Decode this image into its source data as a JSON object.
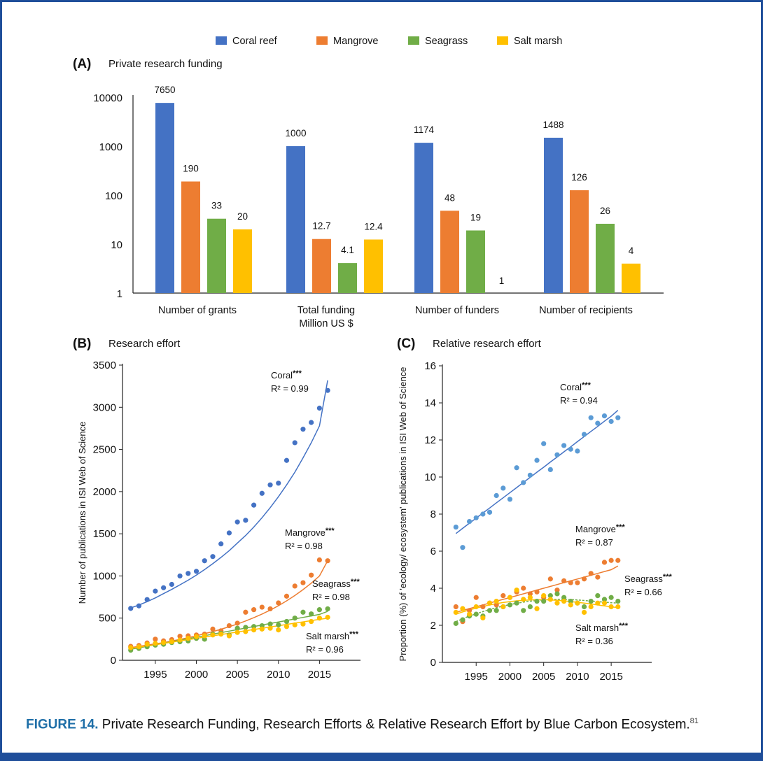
{
  "legend": [
    {
      "name": "Coral reef",
      "color": "#4472c4"
    },
    {
      "name": "Mangrove",
      "color": "#ed7d31"
    },
    {
      "name": "Seagrass",
      "color": "#70ad47"
    },
    {
      "name": "Salt marsh",
      "color": "#ffc000"
    }
  ],
  "caption": {
    "label": "FIGURE 14.",
    "text": "Private Research Funding, Research Efforts & Relative Research Effort by Blue Carbon Ecosystem.",
    "ref": "81"
  },
  "chart_data": [
    {
      "panel": "(A)",
      "title": "Private research funding",
      "type": "bar",
      "yscale": "log",
      "ylim": [
        1,
        10000
      ],
      "yticks": [
        "1",
        "10",
        "100",
        "1000",
        "10000"
      ],
      "categories": [
        "Number of grants",
        "Total funding\nMillion US $",
        "Number of funders",
        "Number of recipients"
      ],
      "series": [
        {
          "name": "Coral reef",
          "color": "#4472c4",
          "values": [
            7650,
            1000,
            1174,
            1488
          ],
          "labels": [
            "7650",
            "1000",
            "1174",
            "1488"
          ]
        },
        {
          "name": "Mangrove",
          "color": "#ed7d31",
          "values": [
            190,
            12.7,
            48,
            126
          ],
          "labels": [
            "190",
            "12.7",
            "48",
            "126"
          ]
        },
        {
          "name": "Seagrass",
          "color": "#70ad47",
          "values": [
            33,
            4.1,
            19,
            26
          ],
          "labels": [
            "33",
            "4.1",
            "19",
            "26"
          ]
        },
        {
          "name": "Salt marsh",
          "color": "#ffc000",
          "values": [
            20,
            12.4,
            1,
            4
          ],
          "labels": [
            "20",
            "12.4",
            "1",
            "4"
          ]
        }
      ]
    },
    {
      "panel": "(B)",
      "title": "Research effort",
      "type": "scatter",
      "ylabel": "Number of publications in ISI Web of Science",
      "xlim": [
        1991,
        2020
      ],
      "ylim": [
        0,
        3500
      ],
      "xticks": [
        "1995",
        "2000",
        "2005",
        "2010",
        "2015"
      ],
      "yticks": [
        "0",
        "500",
        "1000",
        "1500",
        "2000",
        "2500",
        "3000",
        "3500"
      ],
      "x": [
        1992,
        1993,
        1994,
        1995,
        1996,
        1997,
        1998,
        1999,
        2000,
        2001,
        2002,
        2003,
        2004,
        2005,
        2006,
        2007,
        2008,
        2009,
        2010,
        2011,
        2012,
        2013,
        2014,
        2015,
        2016
      ],
      "series": [
        {
          "name": "Coral",
          "color": "#4472c4",
          "point_color": "#4472c4",
          "values": [
            615,
            645,
            720,
            820,
            860,
            900,
            1000,
            1030,
            1055,
            1180,
            1230,
            1380,
            1510,
            1640,
            1660,
            1840,
            1980,
            2080,
            2100,
            2370,
            2580,
            2740,
            2820,
            2990,
            3200
          ],
          "fit": [
            620,
            655,
            695,
            740,
            790,
            840,
            895,
            950,
            1010,
            1075,
            1145,
            1220,
            1300,
            1390,
            1480,
            1580,
            1690,
            1810,
            1940,
            2080,
            2230,
            2400,
            2580,
            2780,
            3320
          ],
          "annotation": "Coral***",
          "r2": "R² = 0.99"
        },
        {
          "name": "Mangrove",
          "color": "#ed7d31",
          "point_color": "#ed7d31",
          "values": [
            165,
            175,
            205,
            250,
            230,
            245,
            285,
            290,
            300,
            310,
            370,
            350,
            410,
            440,
            570,
            600,
            630,
            610,
            680,
            760,
            880,
            920,
            1010,
            1190,
            1180
          ],
          "fit": [
            150,
            165,
            180,
            195,
            210,
            228,
            248,
            268,
            290,
            315,
            340,
            368,
            398,
            430,
            466,
            505,
            548,
            595,
            647,
            705,
            768,
            838,
            915,
            1000,
            1180
          ],
          "annotation": "Mangrove***",
          "r2": "R² = 0.98"
        },
        {
          "name": "Seagrass",
          "color": "#70ad47",
          "point_color": "#70ad47",
          "values": [
            120,
            140,
            160,
            180,
            190,
            210,
            220,
            230,
            260,
            250,
            310,
            320,
            300,
            380,
            390,
            400,
            410,
            430,
            420,
            460,
            500,
            570,
            550,
            600,
            610
          ],
          "fit": [
            130,
            148,
            166,
            184,
            202,
            220,
            238,
            256,
            274,
            292,
            310,
            328,
            346,
            364,
            382,
            400,
            418,
            436,
            454,
            472,
            490,
            508,
            526,
            544,
            580
          ],
          "annotation": "Seagrass***",
          "r2": "R² = 0.98"
        },
        {
          "name": "Salt marsh",
          "color": "#ffc000",
          "point_color": "#ffc000",
          "values": [
            150,
            160,
            190,
            200,
            210,
            220,
            240,
            260,
            280,
            290,
            300,
            310,
            290,
            330,
            340,
            360,
            370,
            380,
            360,
            400,
            420,
            430,
            460,
            500,
            510
          ],
          "fit": [
            140,
            155,
            170,
            185,
            200,
            215,
            230,
            245,
            260,
            275,
            290,
            305,
            320,
            335,
            350,
            365,
            380,
            395,
            410,
            425,
            440,
            455,
            470,
            485,
            500
          ],
          "annotation": "Salt marsh***",
          "r2": "R² = 0.96"
        }
      ]
    },
    {
      "panel": "(C)",
      "title": "Relative research effort",
      "type": "scatter",
      "ylabel": "Proportion (%) of 'ecology/ ecosystem' publications in ISI Web of Science",
      "xlim": [
        1990,
        2021
      ],
      "ylim": [
        0,
        16
      ],
      "xticks": [
        "1995",
        "2000",
        "2005",
        "2010",
        "2015"
      ],
      "yticks": [
        "0",
        "2",
        "4",
        "6",
        "8",
        "10",
        "12",
        "14",
        "16"
      ],
      "x": [
        1992,
        1993,
        1994,
        1995,
        1996,
        1997,
        1998,
        1999,
        2000,
        2001,
        2002,
        2003,
        2004,
        2005,
        2006,
        2007,
        2008,
        2009,
        2010,
        2011,
        2012,
        2013,
        2014,
        2015,
        2016
      ],
      "series": [
        {
          "name": "Coral",
          "color": "#4472c4",
          "point_color": "#5b9bd5",
          "values": [
            7.3,
            6.2,
            7.6,
            7.8,
            8.0,
            8.1,
            9.0,
            9.4,
            8.8,
            10.5,
            9.7,
            10.1,
            10.9,
            11.8,
            10.4,
            11.2,
            11.7,
            11.5,
            11.4,
            12.3,
            13.2,
            12.9,
            13.3,
            13.0,
            13.2
          ],
          "fit": [
            6.95,
            7.23,
            7.51,
            7.78,
            8.06,
            8.33,
            8.61,
            8.88,
            9.16,
            9.43,
            9.71,
            9.98,
            10.26,
            10.53,
            10.81,
            11.08,
            11.36,
            11.63,
            11.91,
            12.18,
            12.46,
            12.73,
            13.01,
            13.28,
            13.6
          ],
          "annotation": "Coral***",
          "r2": "R² = 0.94"
        },
        {
          "name": "Mangrove",
          "color": "#ed7d31",
          "point_color": "#ed7d31",
          "values": [
            3.0,
            2.2,
            2.8,
            3.5,
            3.0,
            3.2,
            3.1,
            3.6,
            3.5,
            3.8,
            4.0,
            3.7,
            3.8,
            3.5,
            4.5,
            3.9,
            4.4,
            4.3,
            4.3,
            4.5,
            4.8,
            4.6,
            5.4,
            5.5,
            5.5
          ],
          "fit": [
            2.7,
            2.8,
            2.9,
            3.0,
            3.1,
            3.2,
            3.3,
            3.4,
            3.5,
            3.6,
            3.7,
            3.8,
            3.9,
            4.0,
            4.1,
            4.2,
            4.3,
            4.4,
            4.5,
            4.6,
            4.7,
            4.8,
            4.9,
            5.0,
            5.2
          ],
          "annotation": "Mangrove***",
          "r2": "R² = 0.87"
        },
        {
          "name": "Seagrass",
          "color": "#70ad47",
          "point_color": "#70ad47",
          "values": [
            2.1,
            2.3,
            2.5,
            2.6,
            2.5,
            2.8,
            2.8,
            3.0,
            3.1,
            3.2,
            2.8,
            3.0,
            3.3,
            3.3,
            3.6,
            3.7,
            3.5,
            3.3,
            3.2,
            3.0,
            3.3,
            3.6,
            3.4,
            3.5,
            3.3
          ],
          "fit": [
            2.2,
            2.35,
            2.5,
            2.62,
            2.74,
            2.85,
            2.95,
            3.04,
            3.12,
            3.19,
            3.25,
            3.3,
            3.34,
            3.37,
            3.39,
            3.4,
            3.4,
            3.39,
            3.37,
            3.34,
            3.31,
            3.28,
            3.25,
            3.22,
            3.2
          ],
          "annotation": "Seagrass***",
          "r2": "R² = 0.66"
        },
        {
          "name": "Salt marsh",
          "color": "#ffc000",
          "point_color": "#ffc000",
          "values": [
            2.7,
            2.9,
            2.6,
            3.0,
            2.4,
            3.2,
            3.3,
            3.0,
            3.5,
            3.9,
            3.4,
            3.5,
            2.9,
            3.6,
            3.4,
            3.2,
            3.3,
            3.1,
            3.2,
            2.7,
            3.0,
            3.2,
            3.2,
            3.0,
            3.0
          ],
          "fit": [
            2.6,
            2.72,
            2.83,
            2.93,
            3.02,
            3.1,
            3.17,
            3.23,
            3.28,
            3.32,
            3.35,
            3.37,
            3.38,
            3.38,
            3.37,
            3.35,
            3.32,
            3.28,
            3.24,
            3.2,
            3.15,
            3.1,
            3.05,
            3.0,
            2.95
          ],
          "annotation": "Salt marsh***",
          "r2": "R² = 0.36"
        }
      ]
    }
  ]
}
